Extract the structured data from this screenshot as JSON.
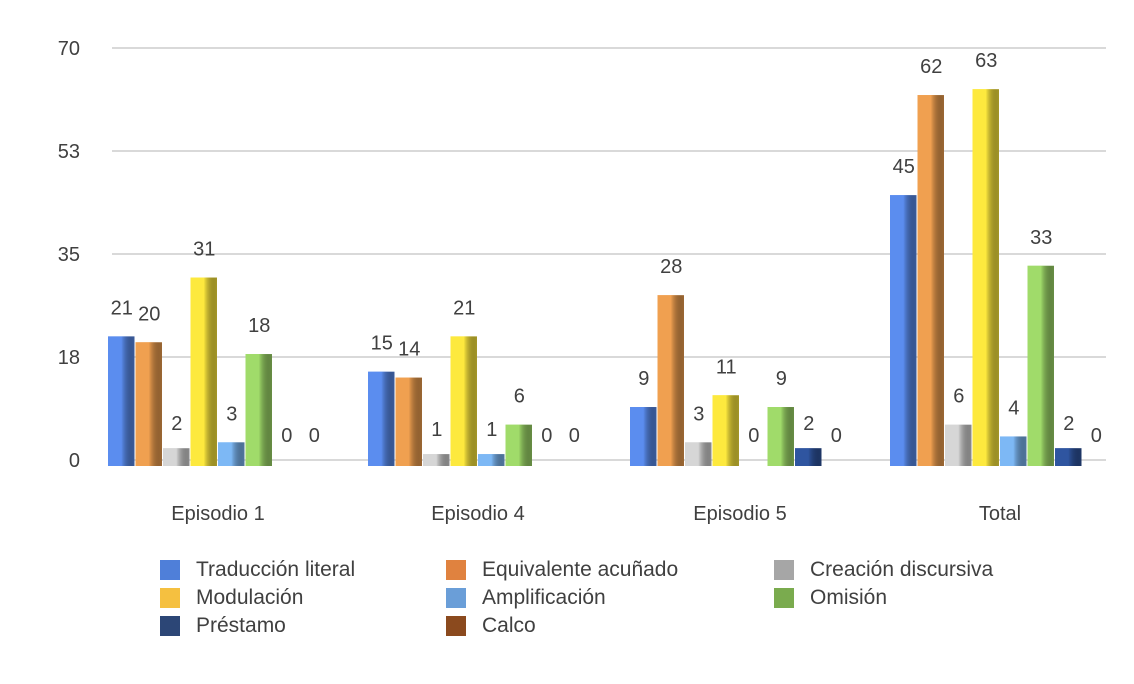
{
  "chart_data": {
    "type": "bar",
    "categories": [
      "Episodio 1",
      "Episodio 4",
      "Episodio 5",
      "Total"
    ],
    "ylim": [
      0,
      70
    ],
    "yticks": [
      0,
      17.5,
      35,
      52.5,
      70
    ],
    "ytick_labels": [
      "0",
      "18",
      "35",
      "53",
      "70"
    ],
    "grid": true,
    "legend_position": "bottom",
    "series": [
      {
        "name": "Traducción literal",
        "color": "#4f7fd9",
        "bar_color": "#5b8def",
        "values": [
          21,
          15,
          9,
          45
        ]
      },
      {
        "name": "Equivalente acuñado",
        "color": "#e0823f",
        "bar_color": "#f0a050",
        "values": [
          20,
          14,
          28,
          62
        ]
      },
      {
        "name": "Creación discursiva",
        "color": "#a6a6a6",
        "bar_color": "#d6d6d6",
        "values": [
          2,
          1,
          3,
          6
        ]
      },
      {
        "name": "Modulación",
        "color": "#f5c040",
        "bar_color": "#fde93e",
        "values": [
          31,
          21,
          11,
          63
        ]
      },
      {
        "name": "Amplificación",
        "color": "#6a9ed8",
        "bar_color": "#7db8f5",
        "values": [
          3,
          1,
          0,
          4
        ]
      },
      {
        "name": "Omisión",
        "color": "#7aab4e",
        "bar_color": "#a0db6a",
        "values": [
          18,
          6,
          9,
          33
        ]
      },
      {
        "name": "Préstamo",
        "color": "#2c4676",
        "bar_color": "#2f55a0",
        "values": [
          0,
          0,
          2,
          2
        ]
      },
      {
        "name": "Calco",
        "color": "#8b4a1e",
        "bar_color": "#8b4a1e",
        "values": [
          0,
          0,
          0,
          0
        ]
      }
    ]
  }
}
